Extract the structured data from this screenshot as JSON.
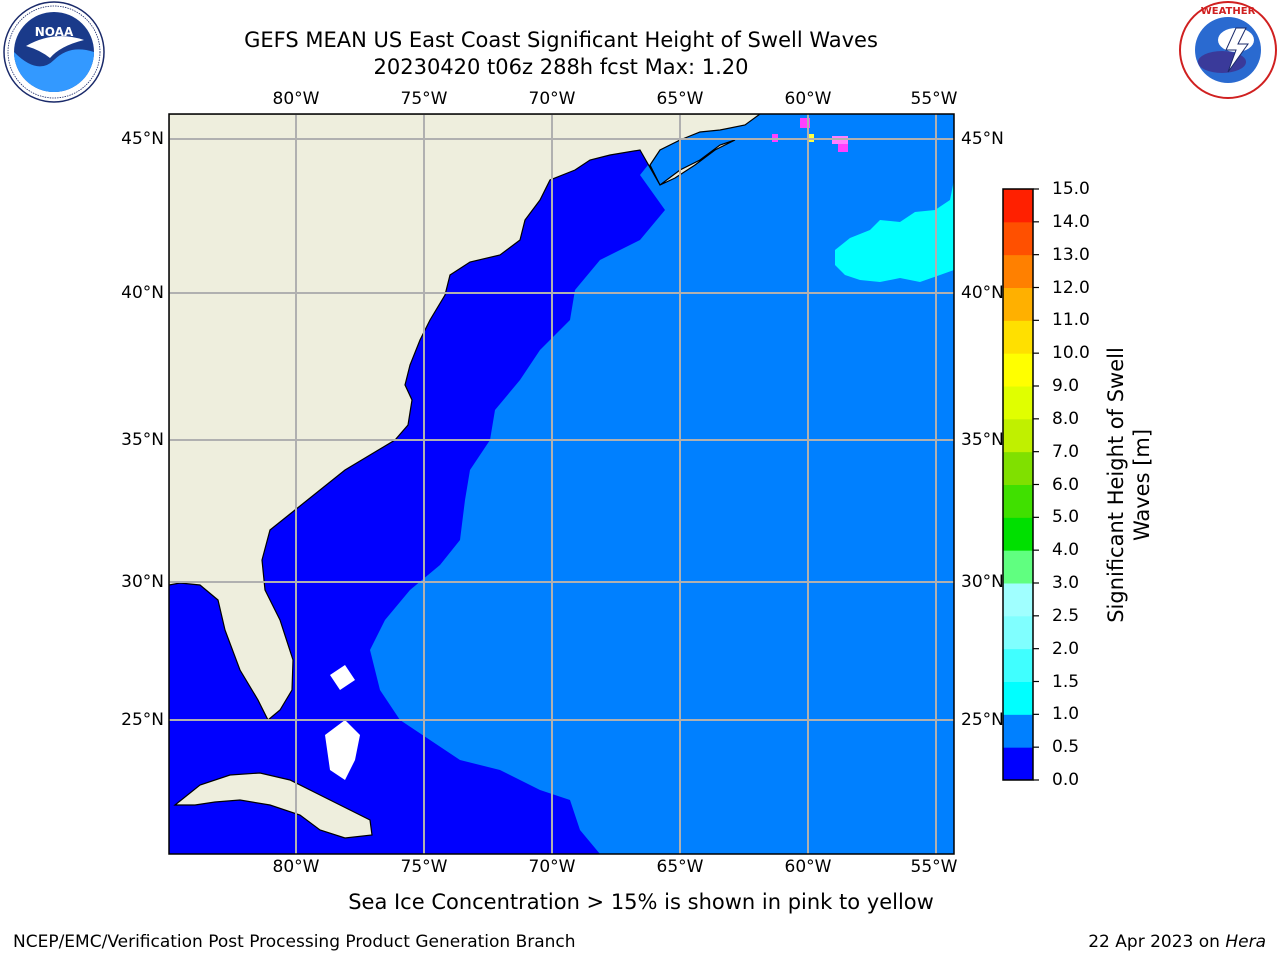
{
  "title": {
    "line1": "GEFS MEAN US East Coast Significant Height of Swell Waves",
    "line2": "20230420 t06z 288h fcst   Max: 1.20"
  },
  "map": {
    "longitude_labels": [
      "80°W",
      "75°W",
      "70°W",
      "65°W",
      "60°W",
      "55°W"
    ],
    "latitude_labels": [
      "45°N",
      "40°N",
      "35°N",
      "30°N",
      "25°N"
    ],
    "extent": {
      "lon_min": -85,
      "lon_max": -54.2,
      "lat_min": 20.5,
      "lat_max": 45.8
    },
    "field_colors": {
      "land": "#eeeedd",
      "swell_0_0_5": "#0000ff",
      "swell_0_5_1_0": "#0080ff",
      "swell_1_0_1_5": "#00ffff",
      "sea_ice": "#ff40ff",
      "grid": "#b0b0b0"
    }
  },
  "colorbar": {
    "label_line1": "Significant Height of Swell",
    "label_line2": "Waves [m]",
    "ticks": [
      "0.0",
      "0.5",
      "1.0",
      "1.5",
      "2.0",
      "2.5",
      "3.0",
      "4.0",
      "5.0",
      "6.0",
      "7.0",
      "8.0",
      "9.0",
      "10.0",
      "11.0",
      "12.0",
      "13.0",
      "14.0",
      "15.0"
    ],
    "colors": [
      "#0000ff",
      "#0080ff",
      "#00ffff",
      "#40ffff",
      "#80ffff",
      "#a0ffff",
      "#60ff80",
      "#00e000",
      "#40e000",
      "#80e000",
      "#c0f000",
      "#e0ff00",
      "#ffff00",
      "#ffe000",
      "#ffb000",
      "#ff8000",
      "#ff5000",
      "#ff2000"
    ]
  },
  "footer": {
    "note": "Sea Ice Concentration > 15% is shown in pink to yellow",
    "credit_left": "NCEP/EMC/Verification Post Processing Product Generation Branch",
    "credit_right_date": "22 Apr 2023 on",
    "credit_right_host": "Hera"
  },
  "logos": {
    "left": "noaa-logo",
    "right": "nws-logo"
  }
}
